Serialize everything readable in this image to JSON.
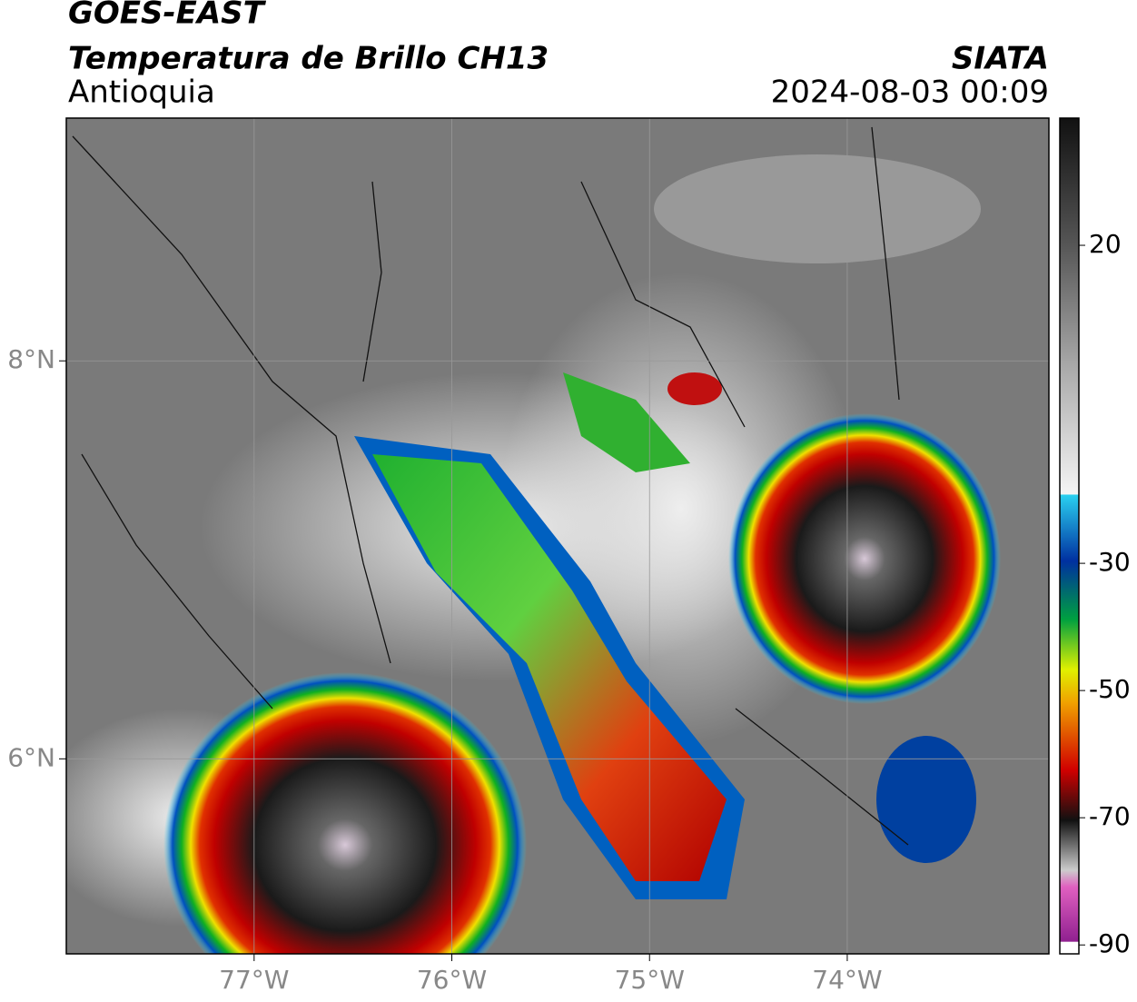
{
  "header": {
    "title": "GOES-EAST",
    "subtitle": "Temperatura de Brillo CH13",
    "region": "Antioquia",
    "source": "SIATA",
    "datetime": "2024-08-03 00:09"
  },
  "map": {
    "type": "map",
    "xlim": [
      -77.95,
      -72.98
    ],
    "ylim": [
      5.02,
      9.22
    ],
    "xticks": [
      {
        "value": -77,
        "label": "77°W"
      },
      {
        "value": -76,
        "label": "76°W"
      },
      {
        "value": -75,
        "label": "75°W"
      },
      {
        "value": -74,
        "label": "74°W"
      }
    ],
    "yticks": [
      {
        "value": 8,
        "label": "8°N"
      },
      {
        "value": 6,
        "label": "6°N"
      }
    ],
    "grid": true
  },
  "colorbar": {
    "lim": [
      -91.4,
      40
    ],
    "ticks": [
      20,
      -30,
      -50,
      -70,
      -90
    ]
  }
}
